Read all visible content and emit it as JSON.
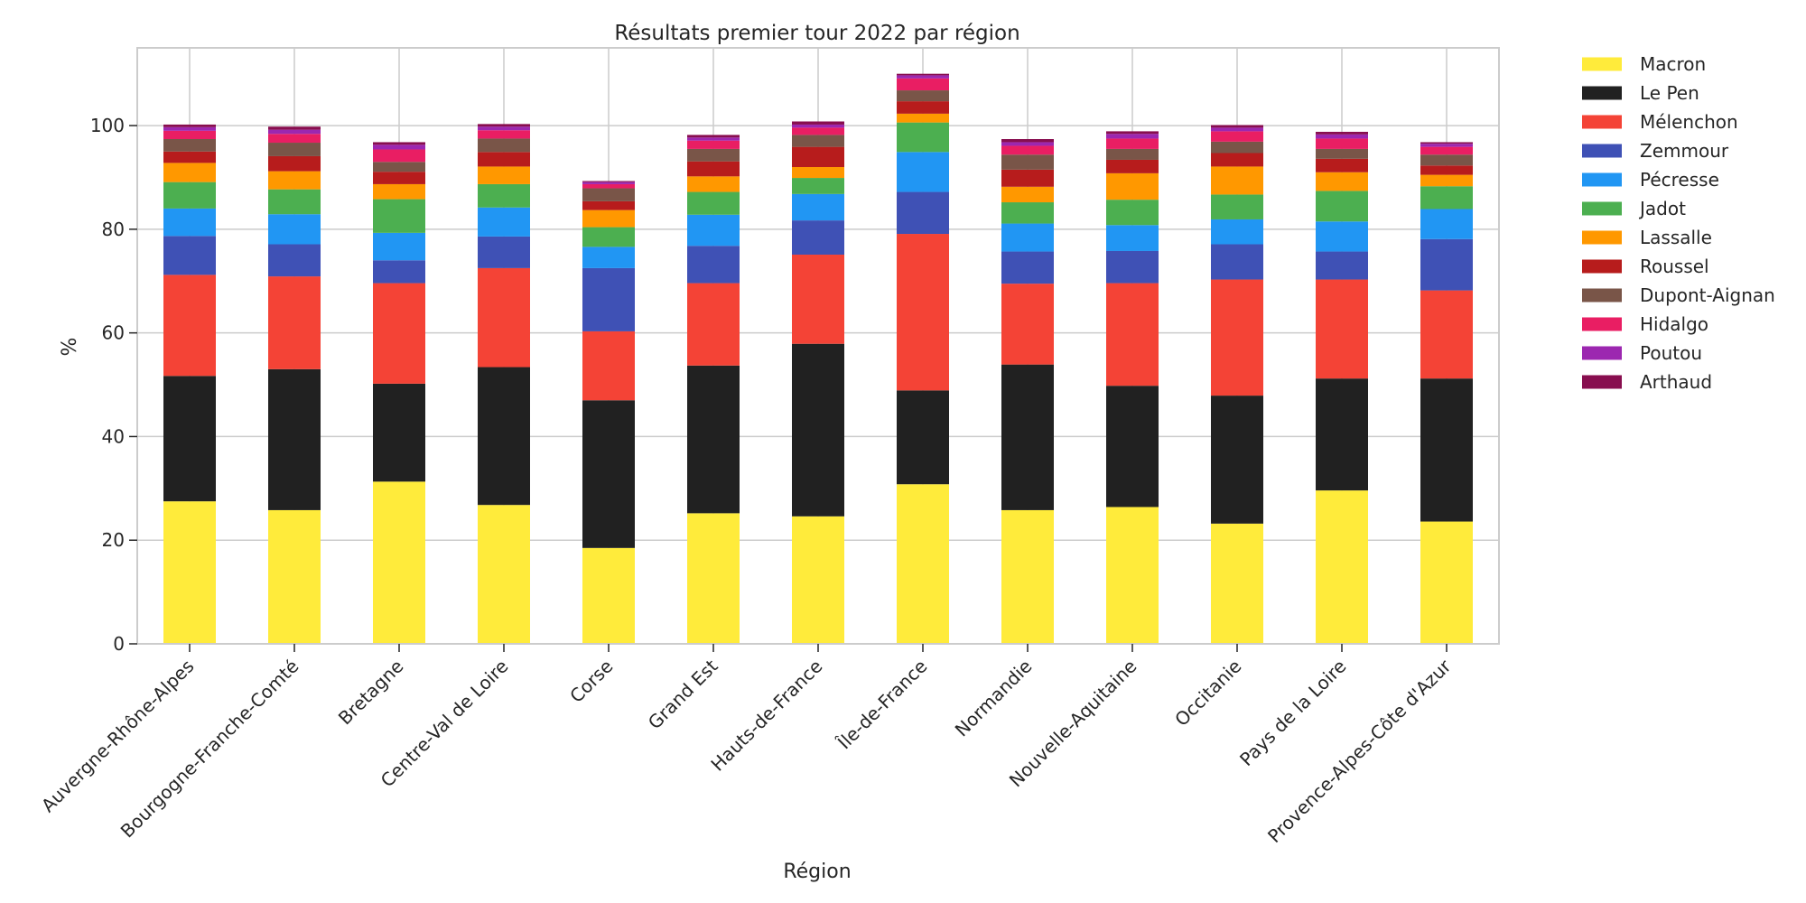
{
  "chart_data": {
    "type": "bar",
    "stacked": true,
    "title": "Résultats premier tour 2022 par région",
    "xlabel": "Région",
    "ylabel": "%",
    "ylim": [
      0,
      115
    ],
    "yticks": [
      "0",
      "20",
      "40",
      "60",
      "80",
      "100"
    ],
    "grid": true,
    "legend_position": "outside-right",
    "categories": [
      "Auvergne-Rhône-Alpes",
      "Bourgogne-Franche-Comté",
      "Bretagne",
      "Centre-Val de Loire",
      "Corse",
      "Grand Est",
      "Hauts-de-France",
      "Île-de-France",
      "Normandie",
      "Nouvelle-Aquitaine",
      "Occitanie",
      "Pays de la Loire",
      "Provence-Alpes-Côte d'Azur"
    ],
    "series": [
      {
        "name": "Macron",
        "color": "#ffeb3b",
        "values": [
          27.5,
          25.8,
          31.3,
          26.8,
          18.5,
          25.2,
          24.6,
          30.8,
          25.8,
          26.4,
          23.2,
          29.6,
          23.6
        ]
      },
      {
        "name": "Le Pen",
        "color": "#212121",
        "values": [
          24.2,
          27.2,
          18.9,
          26.6,
          28.5,
          28.5,
          33.3,
          18.1,
          28.1,
          23.4,
          24.7,
          21.6,
          27.6
        ]
      },
      {
        "name": "Mélenchon",
        "color": "#f44336",
        "values": [
          19.5,
          17.9,
          19.4,
          19.1,
          13.3,
          15.9,
          17.2,
          30.2,
          15.6,
          19.8,
          22.4,
          19.1,
          17.0
        ]
      },
      {
        "name": "Zemmour",
        "color": "#3f51b5",
        "values": [
          7.5,
          6.2,
          4.4,
          6.1,
          12.2,
          7.2,
          6.6,
          8.1,
          6.2,
          6.2,
          6.8,
          5.4,
          9.9
        ]
      },
      {
        "name": "Pécresse",
        "color": "#2196f3",
        "values": [
          5.3,
          5.8,
          5.3,
          5.6,
          4.1,
          6.0,
          5.1,
          7.7,
          5.4,
          5.0,
          4.8,
          5.8,
          5.8
        ]
      },
      {
        "name": "Jadot",
        "color": "#4caf50",
        "values": [
          5.1,
          4.8,
          6.5,
          4.5,
          3.8,
          4.4,
          3.1,
          5.7,
          4.1,
          4.9,
          4.8,
          5.9,
          4.4
        ]
      },
      {
        "name": "Lassalle",
        "color": "#ff9800",
        "values": [
          3.7,
          3.5,
          2.9,
          3.4,
          3.3,
          3.0,
          2.1,
          1.7,
          3.0,
          5.1,
          5.4,
          3.6,
          2.2
        ]
      },
      {
        "name": "Roussel",
        "color": "#b71c1c",
        "values": [
          2.2,
          2.9,
          2.4,
          2.8,
          1.7,
          2.9,
          3.9,
          2.4,
          3.3,
          2.6,
          2.6,
          2.6,
          1.8
        ]
      },
      {
        "name": "Dupont-Aignan",
        "color": "#795548",
        "values": [
          2.4,
          2.6,
          1.9,
          2.6,
          2.5,
          2.4,
          2.3,
          2.1,
          2.9,
          2.1,
          2.2,
          1.9,
          2.1
        ]
      },
      {
        "name": "Hidalgo",
        "color": "#e91e63",
        "values": [
          1.6,
          1.7,
          2.4,
          1.6,
          0.8,
          1.6,
          1.4,
          2.3,
          1.7,
          2.0,
          2.0,
          2.0,
          1.5
        ]
      },
      {
        "name": "Poutou",
        "color": "#9c27b0",
        "values": [
          0.7,
          0.8,
          0.9,
          0.7,
          0.4,
          0.6,
          0.6,
          0.6,
          0.7,
          0.9,
          0.7,
          0.8,
          0.6
        ]
      },
      {
        "name": "Arthaud",
        "color": "#880e4f",
        "values": [
          0.5,
          0.6,
          0.5,
          0.5,
          0.2,
          0.5,
          0.6,
          0.3,
          0.6,
          0.5,
          0.5,
          0.5,
          0.3
        ]
      }
    ]
  }
}
